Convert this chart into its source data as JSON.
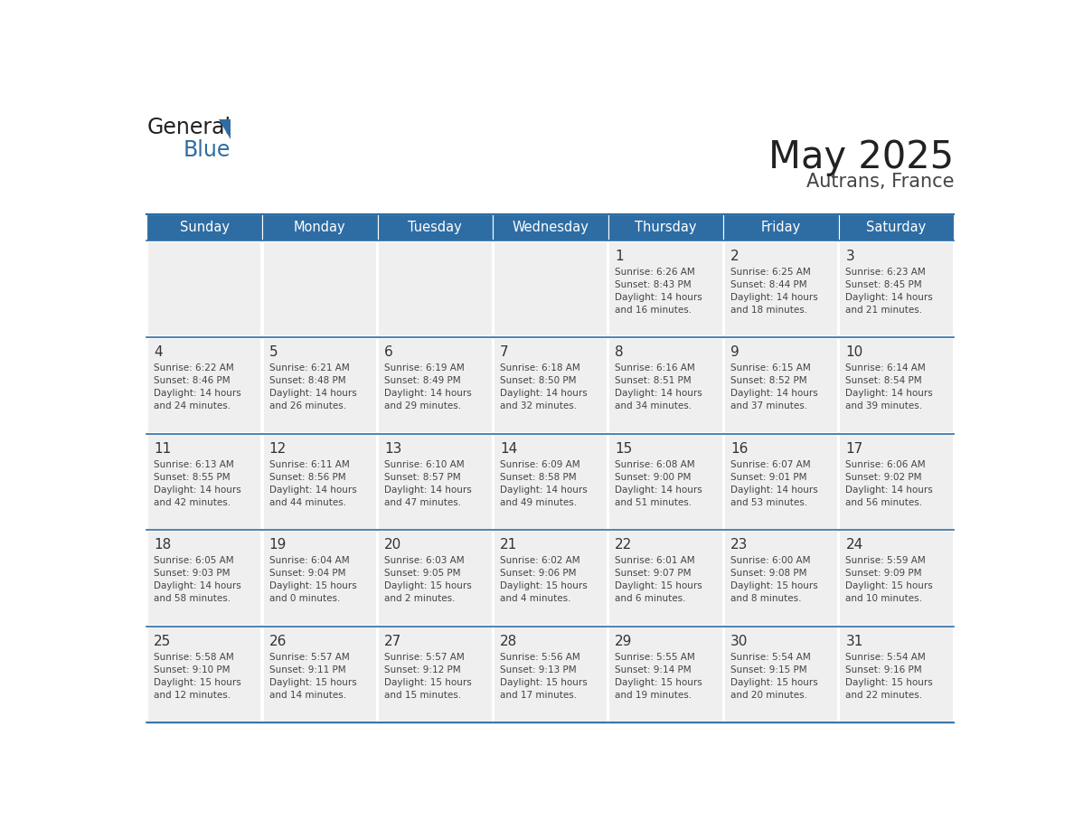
{
  "title": "May 2025",
  "subtitle": "Autrans, France",
  "header_color": "#2E6DA4",
  "header_text_color": "#FFFFFF",
  "background_color": "#FFFFFF",
  "cell_bg_color": "#EFEFEF",
  "cell_border_color": "#FFFFFF",
  "days_of_week": [
    "Sunday",
    "Monday",
    "Tuesday",
    "Wednesday",
    "Thursday",
    "Friday",
    "Saturday"
  ],
  "weeks": [
    [
      {
        "day": "",
        "text": ""
      },
      {
        "day": "",
        "text": ""
      },
      {
        "day": "",
        "text": ""
      },
      {
        "day": "",
        "text": ""
      },
      {
        "day": "1",
        "text": "Sunrise: 6:26 AM\nSunset: 8:43 PM\nDaylight: 14 hours\nand 16 minutes."
      },
      {
        "day": "2",
        "text": "Sunrise: 6:25 AM\nSunset: 8:44 PM\nDaylight: 14 hours\nand 18 minutes."
      },
      {
        "day": "3",
        "text": "Sunrise: 6:23 AM\nSunset: 8:45 PM\nDaylight: 14 hours\nand 21 minutes."
      }
    ],
    [
      {
        "day": "4",
        "text": "Sunrise: 6:22 AM\nSunset: 8:46 PM\nDaylight: 14 hours\nand 24 minutes."
      },
      {
        "day": "5",
        "text": "Sunrise: 6:21 AM\nSunset: 8:48 PM\nDaylight: 14 hours\nand 26 minutes."
      },
      {
        "day": "6",
        "text": "Sunrise: 6:19 AM\nSunset: 8:49 PM\nDaylight: 14 hours\nand 29 minutes."
      },
      {
        "day": "7",
        "text": "Sunrise: 6:18 AM\nSunset: 8:50 PM\nDaylight: 14 hours\nand 32 minutes."
      },
      {
        "day": "8",
        "text": "Sunrise: 6:16 AM\nSunset: 8:51 PM\nDaylight: 14 hours\nand 34 minutes."
      },
      {
        "day": "9",
        "text": "Sunrise: 6:15 AM\nSunset: 8:52 PM\nDaylight: 14 hours\nand 37 minutes."
      },
      {
        "day": "10",
        "text": "Sunrise: 6:14 AM\nSunset: 8:54 PM\nDaylight: 14 hours\nand 39 minutes."
      }
    ],
    [
      {
        "day": "11",
        "text": "Sunrise: 6:13 AM\nSunset: 8:55 PM\nDaylight: 14 hours\nand 42 minutes."
      },
      {
        "day": "12",
        "text": "Sunrise: 6:11 AM\nSunset: 8:56 PM\nDaylight: 14 hours\nand 44 minutes."
      },
      {
        "day": "13",
        "text": "Sunrise: 6:10 AM\nSunset: 8:57 PM\nDaylight: 14 hours\nand 47 minutes."
      },
      {
        "day": "14",
        "text": "Sunrise: 6:09 AM\nSunset: 8:58 PM\nDaylight: 14 hours\nand 49 minutes."
      },
      {
        "day": "15",
        "text": "Sunrise: 6:08 AM\nSunset: 9:00 PM\nDaylight: 14 hours\nand 51 minutes."
      },
      {
        "day": "16",
        "text": "Sunrise: 6:07 AM\nSunset: 9:01 PM\nDaylight: 14 hours\nand 53 minutes."
      },
      {
        "day": "17",
        "text": "Sunrise: 6:06 AM\nSunset: 9:02 PM\nDaylight: 14 hours\nand 56 minutes."
      }
    ],
    [
      {
        "day": "18",
        "text": "Sunrise: 6:05 AM\nSunset: 9:03 PM\nDaylight: 14 hours\nand 58 minutes."
      },
      {
        "day": "19",
        "text": "Sunrise: 6:04 AM\nSunset: 9:04 PM\nDaylight: 15 hours\nand 0 minutes."
      },
      {
        "day": "20",
        "text": "Sunrise: 6:03 AM\nSunset: 9:05 PM\nDaylight: 15 hours\nand 2 minutes."
      },
      {
        "day": "21",
        "text": "Sunrise: 6:02 AM\nSunset: 9:06 PM\nDaylight: 15 hours\nand 4 minutes."
      },
      {
        "day": "22",
        "text": "Sunrise: 6:01 AM\nSunset: 9:07 PM\nDaylight: 15 hours\nand 6 minutes."
      },
      {
        "day": "23",
        "text": "Sunrise: 6:00 AM\nSunset: 9:08 PM\nDaylight: 15 hours\nand 8 minutes."
      },
      {
        "day": "24",
        "text": "Sunrise: 5:59 AM\nSunset: 9:09 PM\nDaylight: 15 hours\nand 10 minutes."
      }
    ],
    [
      {
        "day": "25",
        "text": "Sunrise: 5:58 AM\nSunset: 9:10 PM\nDaylight: 15 hours\nand 12 minutes."
      },
      {
        "day": "26",
        "text": "Sunrise: 5:57 AM\nSunset: 9:11 PM\nDaylight: 15 hours\nand 14 minutes."
      },
      {
        "day": "27",
        "text": "Sunrise: 5:57 AM\nSunset: 9:12 PM\nDaylight: 15 hours\nand 15 minutes."
      },
      {
        "day": "28",
        "text": "Sunrise: 5:56 AM\nSunset: 9:13 PM\nDaylight: 15 hours\nand 17 minutes."
      },
      {
        "day": "29",
        "text": "Sunrise: 5:55 AM\nSunset: 9:14 PM\nDaylight: 15 hours\nand 19 minutes."
      },
      {
        "day": "30",
        "text": "Sunrise: 5:54 AM\nSunset: 9:15 PM\nDaylight: 15 hours\nand 20 minutes."
      },
      {
        "day": "31",
        "text": "Sunrise: 5:54 AM\nSunset: 9:16 PM\nDaylight: 15 hours\nand 22 minutes."
      }
    ]
  ],
  "text_color": "#444444",
  "day_number_color": "#333333",
  "line_color": "#2E6DA4",
  "logo_general_color": "#222222",
  "logo_blue_color": "#2E6DA4",
  "title_color": "#222222",
  "subtitle_color": "#444444"
}
